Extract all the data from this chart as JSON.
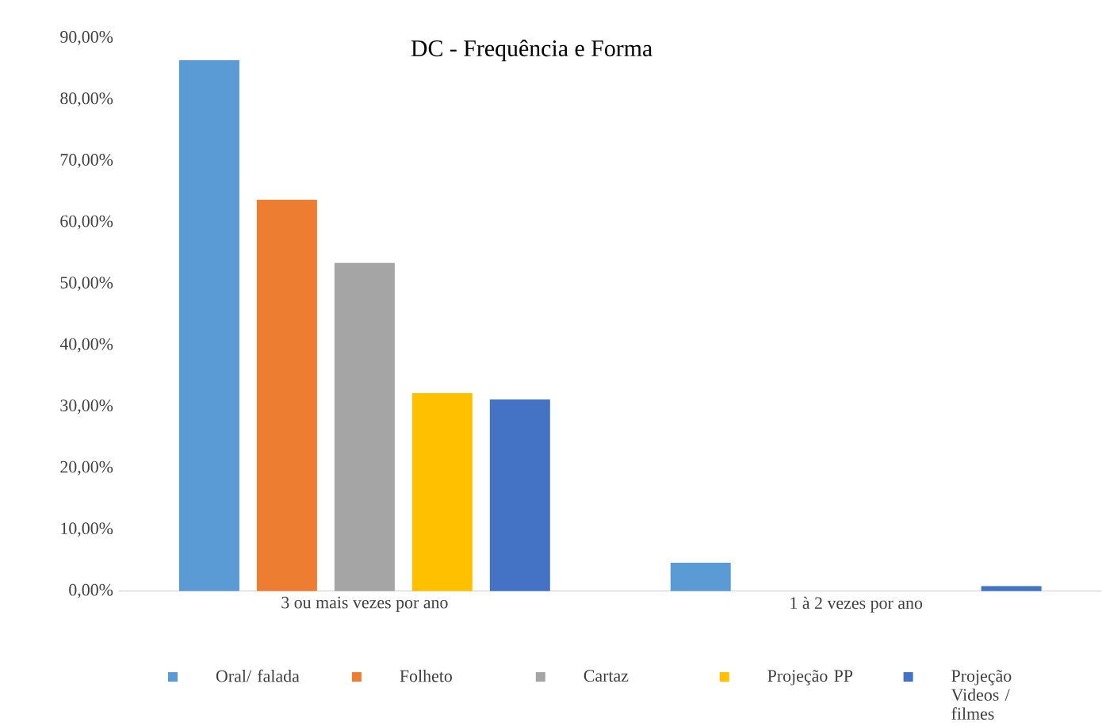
{
  "chart_data": {
    "type": "bar",
    "title": "DC - Frequência e Forma",
    "categories": [
      "3 ou mais vezes por ano",
      "1 à 2 vezes por ano"
    ],
    "series": [
      {
        "name": "Oral/ falada",
        "color": "#5b9bd5",
        "values": [
          86.4,
          4.6
        ]
      },
      {
        "name": "Folheto",
        "color": "#ed7d31",
        "values": [
          63.7,
          0
        ]
      },
      {
        "name": "Cartaz",
        "color": "#a5a5a5",
        "values": [
          53.4,
          0
        ]
      },
      {
        "name": "Projeção PP",
        "color": "#ffc000",
        "values": [
          32.2,
          0
        ]
      },
      {
        "name": "Projeção Videos / filmes",
        "color": "#4472c4",
        "values": [
          31.2,
          0.8
        ]
      }
    ],
    "ylim": [
      0,
      90
    ],
    "yticks": [
      {
        "value": 0,
        "label": "0,00%"
      },
      {
        "value": 10,
        "label": "10,00%"
      },
      {
        "value": 20,
        "label": "20,00%"
      },
      {
        "value": 30,
        "label": "30,00%"
      },
      {
        "value": 40,
        "label": "40,00%"
      },
      {
        "value": 50,
        "label": "50,00%"
      },
      {
        "value": 60,
        "label": "60,00%"
      },
      {
        "value": 70,
        "label": "70,00%"
      },
      {
        "value": 80,
        "label": "80,00%"
      },
      {
        "value": 90,
        "label": "90,00%"
      }
    ],
    "grid": false,
    "legend": "bottom"
  }
}
